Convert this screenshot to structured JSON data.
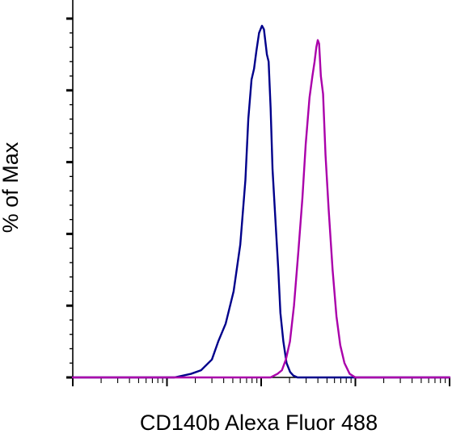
{
  "chart_data": {
    "type": "line",
    "title": "",
    "xlabel": "CD140b Alexa Fluor 488",
    "ylabel": "% of Max",
    "x_scale": "log",
    "xlim": [
      0.1,
      1000
    ],
    "ylim": [
      0,
      100
    ],
    "grid": false,
    "legend": "none",
    "series": [
      {
        "color": "#00008b",
        "x": [
          0.1,
          1.2,
          1.8,
          2.3,
          3.0,
          3.5,
          4.2,
          5.1,
          6.0,
          6.8,
          7.3,
          7.9,
          8.4,
          8.9,
          9.5,
          10.2,
          10.7,
          11.5,
          12.0,
          12.6,
          13.2,
          14.3,
          15.2,
          16.0,
          17.2,
          18.6,
          20.3,
          22.0,
          24.3,
          26.7,
          29.7,
          1000
        ],
        "y": [
          0,
          0,
          1,
          2,
          5,
          10,
          15,
          24,
          37,
          55,
          72,
          83,
          86,
          91,
          96,
          98,
          97,
          90,
          88,
          75,
          58,
          42,
          30,
          18,
          10,
          4,
          1.5,
          0.5,
          0,
          0,
          0,
          0
        ]
      },
      {
        "color": "#aa00aa",
        "x": [
          0.1,
          12.6,
          14.9,
          16.6,
          18.3,
          20.2,
          22.3,
          24.8,
          27.4,
          29.7,
          32.6,
          35.0,
          36.9,
          38.5,
          39.9,
          41.2,
          43.0,
          45.4,
          48.2,
          52.0,
          57.3,
          63.0,
          69.1,
          76.6,
          87.0,
          100,
          1000
        ],
        "y": [
          0,
          0,
          1,
          2,
          5,
          10,
          20,
          35,
          50,
          65,
          78,
          84,
          88,
          92,
          94,
          93,
          84,
          79,
          62,
          47,
          30,
          17,
          9,
          4,
          1,
          0,
          0
        ]
      }
    ]
  }
}
